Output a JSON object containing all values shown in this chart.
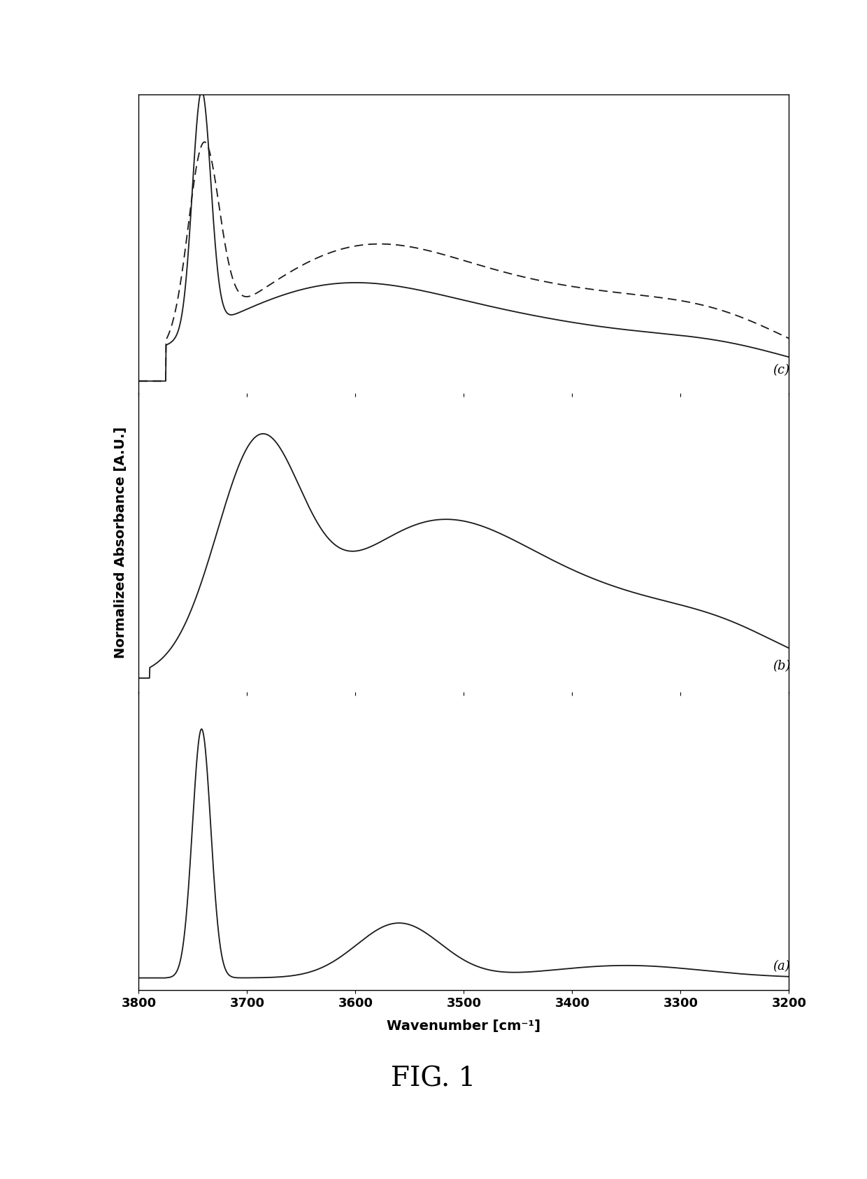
{
  "xlabel": "Wavenumber [cm⁻¹]",
  "ylabel": "Normalized Absorbance [A.U.]",
  "xlim": [
    3800,
    3200
  ],
  "xticks": [
    3800,
    3700,
    3600,
    3500,
    3400,
    3300,
    3200
  ],
  "background_color": "#ffffff",
  "line_color": "#1a1a1a",
  "figure_label": "FIG. 1"
}
